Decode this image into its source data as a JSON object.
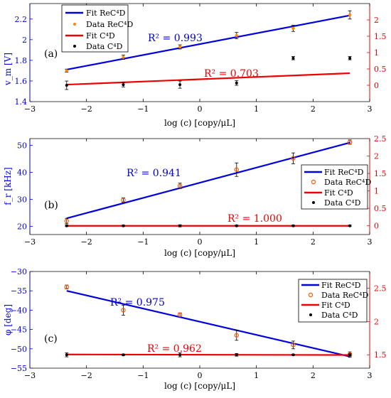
{
  "chart_data": [
    {
      "type": "scatter",
      "panel_label": "(a)",
      "xlabel": "log (c) [copy/μL]",
      "ylabel": "v_m [V]",
      "x": [
        -2.35,
        -1.35,
        -0.35,
        0.65,
        1.65,
        2.65
      ],
      "xlim": [
        -3,
        3
      ],
      "xticks": [
        "−3",
        "−2",
        "−1",
        "0",
        "1",
        "2",
        "3"
      ],
      "ylim": [
        1.4,
        2.35
      ],
      "yticks": [
        1.4,
        1.6,
        1.8,
        2.0,
        2.2
      ],
      "yticklabels": [
        "1.4",
        "1.6",
        "1.8",
        "2",
        "2.2"
      ],
      "y2lim": [
        -0.5,
        2.5
      ],
      "y2ticks": [
        0,
        0.5,
        1,
        1.5,
        2
      ],
      "y2ticklabels": [
        "0",
        "0.5",
        "1",
        "1.5",
        "2"
      ],
      "series": [
        {
          "name": "Fit ReC⁴D",
          "kind": "line",
          "axis": "left",
          "x": [
            -2.35,
            2.65
          ],
          "values": [
            1.71,
            2.235
          ],
          "color": "#0000dd"
        },
        {
          "name": "Data ReC⁴D",
          "kind": "points",
          "axis": "left",
          "values": [
            1.7,
            1.83,
            1.93,
            2.04,
            2.11,
            2.24
          ],
          "err": [
            0.015,
            0.02,
            0.02,
            0.03,
            0.03,
            0.04
          ],
          "color": "#ff8800"
        },
        {
          "name": "Fit C⁴D",
          "kind": "line",
          "axis": "right",
          "x": [
            -2.35,
            2.65
          ],
          "values": [
            0.02,
            0.37
          ],
          "color": "#ee0000"
        },
        {
          "name": "Data C⁴D",
          "kind": "points",
          "axis": "right",
          "values": [
            0.0,
            0.02,
            0.02,
            0.07,
            0.83,
            0.83
          ],
          "err": [
            0.13,
            0.07,
            0.11,
            0.07,
            0.05,
            0.05
          ],
          "color": "#000000"
        }
      ],
      "annotations": [
        {
          "text": "R² = 0.993",
          "color": "#0000dd"
        },
        {
          "text": "R² = 0.703",
          "color": "#ee0000"
        }
      ],
      "legend_position": "top-left"
    },
    {
      "type": "scatter",
      "panel_label": "(b)",
      "xlabel": "log (c) [copy/μL]",
      "ylabel": "f_r [kHz]",
      "x": [
        -2.35,
        -1.35,
        -0.35,
        0.65,
        1.65,
        2.65
      ],
      "xlim": [
        -3,
        3
      ],
      "xticks": [
        "−3",
        "−2",
        "−1",
        "0",
        "1",
        "2",
        "3"
      ],
      "ylim": [
        17,
        52.5
      ],
      "yticks": [
        20,
        30,
        40,
        50
      ],
      "yticklabels": [
        "20",
        "30",
        "40",
        "50"
      ],
      "y2lim": [
        -0.25,
        2.5
      ],
      "y2ticks": [
        0,
        0.5,
        1,
        1.5,
        2,
        2.5
      ],
      "y2ticklabels": [
        "0",
        "0.5",
        "1",
        "1.5",
        "2",
        "2.5"
      ],
      "series": [
        {
          "name": "Fit ReC⁴D",
          "kind": "line",
          "axis": "left",
          "x": [
            -2.35,
            2.65
          ],
          "values": [
            23.0,
            51.0
          ],
          "color": "#0000dd"
        },
        {
          "name": "Data ReC⁴D",
          "kind": "points",
          "axis": "left",
          "values": [
            22.0,
            29.8,
            35.0,
            41.0,
            45.2,
            51.2
          ],
          "err": [
            1.0,
            0.8,
            1.0,
            2.5,
            2.0,
            0.8
          ],
          "color": "#ff8800"
        },
        {
          "name": "Fit C⁴D",
          "kind": "line",
          "axis": "right",
          "x": [
            -2.35,
            2.65
          ],
          "values": [
            0.0,
            0.0
          ],
          "color": "#ee0000"
        },
        {
          "name": "Data C⁴D",
          "kind": "points",
          "axis": "right",
          "values": [
            0,
            0,
            0,
            0,
            0,
            0
          ],
          "err": [
            0.02,
            0.02,
            0.03,
            0.02,
            0.02,
            0.02
          ],
          "color": "#000000"
        }
      ],
      "annotations": [
        {
          "text": "R² = 0.941",
          "color": "#0000dd"
        },
        {
          "text": "R² = 1.000",
          "color": "#ee0000"
        }
      ],
      "legend_position": "right"
    },
    {
      "type": "scatter",
      "panel_label": "(c)",
      "xlabel": "log (c) [copy/μL]",
      "ylabel": "φ [deg]",
      "x": [
        -2.35,
        -1.35,
        -0.35,
        0.65,
        1.65,
        2.65
      ],
      "xlim": [
        -3,
        3
      ],
      "xticks": [
        "−3",
        "−2",
        "−1",
        "0",
        "1",
        "2",
        "3"
      ],
      "ylim": [
        -55,
        -30
      ],
      "yticks": [
        -55,
        -50,
        -45,
        -40,
        -35,
        -30
      ],
      "yticklabels": [
        "−55",
        "−50",
        "−45",
        "−40",
        "−35",
        "−30"
      ],
      "y2lim": [
        1.3,
        2.75
      ],
      "y2ticks": [
        1.5,
        2,
        2.5
      ],
      "y2ticklabels": [
        "1.5",
        "2",
        "2.5"
      ],
      "series": [
        {
          "name": "Fit ReC⁴D",
          "kind": "line",
          "axis": "left",
          "x": [
            -2.35,
            2.65
          ],
          "values": [
            -35.0,
            -52.0
          ],
          "color": "#0000dd"
        },
        {
          "name": "Data ReC⁴D",
          "kind": "points",
          "axis": "left",
          "values": [
            -34.0,
            -40.0,
            -41.2,
            -46.5,
            -49.0,
            -51.5
          ],
          "err": [
            0.5,
            1.3,
            0.5,
            1.3,
            1.0,
            0.7
          ],
          "color": "#ff8800"
        },
        {
          "name": "Fit C⁴D",
          "kind": "line",
          "axis": "right",
          "x": [
            -2.35,
            2.65
          ],
          "values": [
            1.505,
            1.497
          ],
          "color": "#ee0000"
        },
        {
          "name": "Data C⁴D",
          "kind": "points",
          "axis": "right",
          "values": [
            1.5,
            1.5,
            1.5,
            1.5,
            1.5,
            1.5
          ],
          "err": [
            0.03,
            0.01,
            0.03,
            0.02,
            0.01,
            0.02
          ],
          "color": "#000000"
        }
      ],
      "annotations": [
        {
          "text": "R² = 0.975",
          "color": "#0000dd"
        },
        {
          "text": "R² = 0.962",
          "color": "#ee0000"
        }
      ],
      "legend_position": "top-right"
    }
  ],
  "colors": {
    "left_axis": "#0000dd",
    "right_axis": "#ee0000",
    "ReC4D_fit": "#0000dd",
    "ReC4D_data": "#ff8800",
    "C4D_fit": "#ee0000",
    "C4D_data": "#000000"
  }
}
